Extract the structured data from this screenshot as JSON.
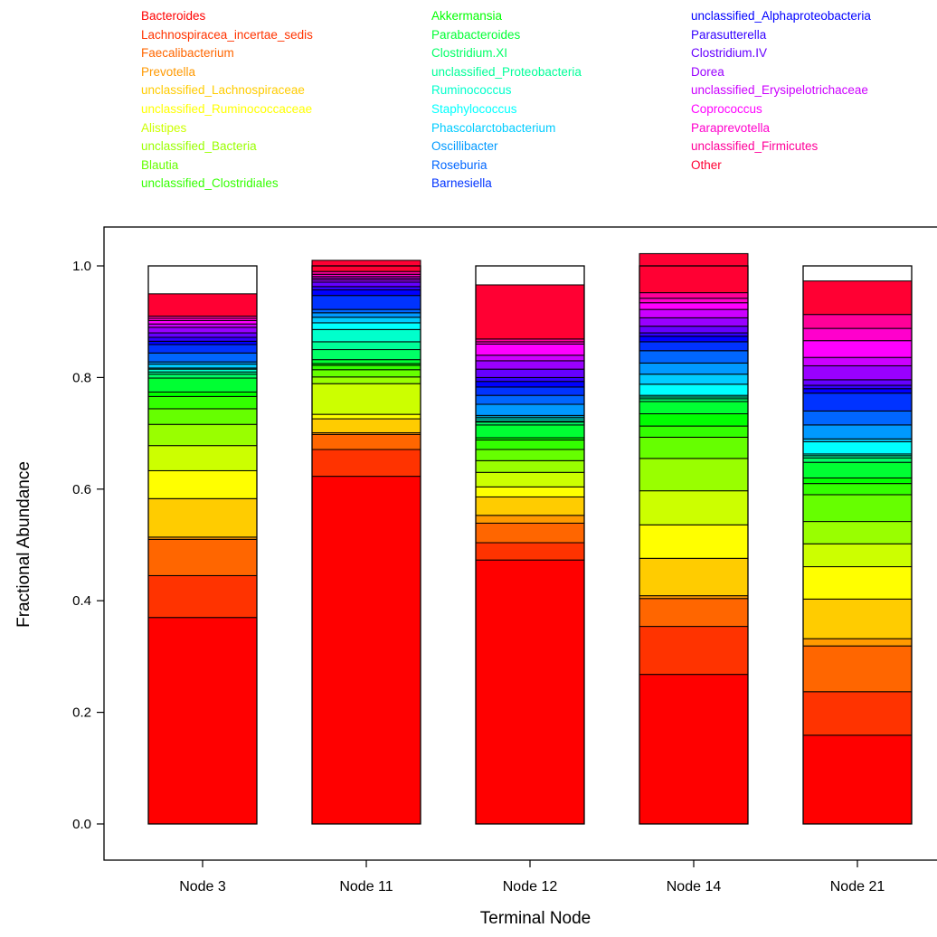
{
  "chart_data": {
    "type": "bar",
    "stacked": true,
    "title": "",
    "xlabel": "Terminal Node",
    "ylabel": "Fractional Abundance",
    "ylim": [
      0,
      1
    ],
    "yticks": [
      "0.0",
      "0.2",
      "0.4",
      "0.6",
      "0.8",
      "1.0"
    ],
    "categories": [
      "Node 3",
      "Node 11",
      "Node 12",
      "Node 14",
      "Node 21"
    ],
    "legend_position": "top",
    "series": [
      {
        "name": "Bacteroides",
        "color": "#FF0000",
        "values": [
          0.37,
          0.623,
          0.473,
          0.268,
          0.159
        ]
      },
      {
        "name": "Lachnospiracea_incertae_sedis",
        "color": "#FF3300",
        "values": [
          0.075,
          0.048,
          0.031,
          0.086,
          0.078
        ]
      },
      {
        "name": "Faecalibacterium",
        "color": "#FF6600",
        "values": [
          0.065,
          0.027,
          0.035,
          0.05,
          0.082
        ]
      },
      {
        "name": "Prevotella",
        "color": "#FF9900",
        "values": [
          0.004,
          0.003,
          0.014,
          0.005,
          0.013
        ]
      },
      {
        "name": "unclassified_Lachnospiraceae",
        "color": "#FFCC00",
        "values": [
          0.069,
          0.025,
          0.033,
          0.067,
          0.071
        ]
      },
      {
        "name": "unclassified_Ruminococcaceae",
        "color": "#FFFF00",
        "values": [
          0.05,
          0.008,
          0.018,
          0.06,
          0.058
        ]
      },
      {
        "name": "Alistipes",
        "color": "#CCFF00",
        "values": [
          0.045,
          0.055,
          0.026,
          0.061,
          0.041
        ]
      },
      {
        "name": "unclassified_Bacteria",
        "color": "#99FF00",
        "values": [
          0.038,
          0.012,
          0.021,
          0.058,
          0.04
        ]
      },
      {
        "name": "Blautia",
        "color": "#66FF00",
        "values": [
          0.028,
          0.013,
          0.02,
          0.038,
          0.048
        ]
      },
      {
        "name": "unclassified_Clostridiales",
        "color": "#33FF00",
        "values": [
          0.022,
          0.008,
          0.017,
          0.02,
          0.02
        ]
      },
      {
        "name": "Akkermansia",
        "color": "#00FF00",
        "values": [
          0.008,
          0.003,
          0.004,
          0.022,
          0.01
        ]
      },
      {
        "name": "Parabacteroides",
        "color": "#00FF33",
        "values": [
          0.025,
          0.007,
          0.023,
          0.022,
          0.028
        ]
      },
      {
        "name": "Clostridium.XI",
        "color": "#00FF66",
        "values": [
          0.007,
          0.018,
          0.005,
          0.005,
          0.008
        ]
      },
      {
        "name": "unclassified_Proteobacteria",
        "color": "#00FF99",
        "values": [
          0.004,
          0.014,
          0.002,
          0.003,
          0.004
        ]
      },
      {
        "name": "Ruminococcus",
        "color": "#00FFCC",
        "values": [
          0.005,
          0.022,
          0.004,
          0.003,
          0.003
        ]
      },
      {
        "name": "Staphylococcus",
        "color": "#00FFFF",
        "values": [
          0.002,
          0.012,
          0.003,
          0.02,
          0.022
        ]
      },
      {
        "name": "Phascolarctobacterium",
        "color": "#00CCFF",
        "values": [
          0.007,
          0.01,
          0.003,
          0.018,
          0.005
        ]
      },
      {
        "name": "Oscillibacter",
        "color": "#0099FF",
        "values": [
          0.004,
          0.008,
          0.02,
          0.02,
          0.025
        ]
      },
      {
        "name": "Roseburia",
        "color": "#0066FF",
        "values": [
          0.016,
          0.006,
          0.016,
          0.022,
          0.025
        ]
      },
      {
        "name": "Barnesiella",
        "color": "#0033FF",
        "values": [
          0.015,
          0.025,
          0.015,
          0.016,
          0.032
        ]
      },
      {
        "name": "unclassified_Alphaproteobacteria",
        "color": "#0000FF",
        "values": [
          0.006,
          0.01,
          0.01,
          0.01,
          0.008
        ]
      },
      {
        "name": "Parasutterella",
        "color": "#3300FF",
        "values": [
          0.007,
          0.006,
          0.007,
          0.006,
          0.006
        ]
      },
      {
        "name": "Clostridium.IV",
        "color": "#6600FF",
        "values": [
          0.008,
          0.008,
          0.015,
          0.012,
          0.01
        ]
      },
      {
        "name": "Dorea",
        "color": "#9900FF",
        "values": [
          0.01,
          0.004,
          0.015,
          0.015,
          0.025
        ]
      },
      {
        "name": "unclassified_Erysipelotrichaceae",
        "color": "#CC00FF",
        "values": [
          0.006,
          0.003,
          0.01,
          0.015,
          0.015
        ]
      },
      {
        "name": "Coprococcus",
        "color": "#FF00FF",
        "values": [
          0.006,
          0.003,
          0.02,
          0.012,
          0.03
        ]
      },
      {
        "name": "Paraprevotella",
        "color": "#FF00CC",
        "values": [
          0.004,
          0.004,
          0.004,
          0.008,
          0.022
        ]
      },
      {
        "name": "unclassified_Firmicutes",
        "color": "#FF0099",
        "values": [
          0.004,
          0.005,
          0.005,
          0.01,
          0.025
        ]
      },
      {
        "name": "Other",
        "color": "#FF0033",
        "values": [
          0.04,
          0.02,
          0.097,
          0.07,
          0.06
        ]
      }
    ]
  }
}
